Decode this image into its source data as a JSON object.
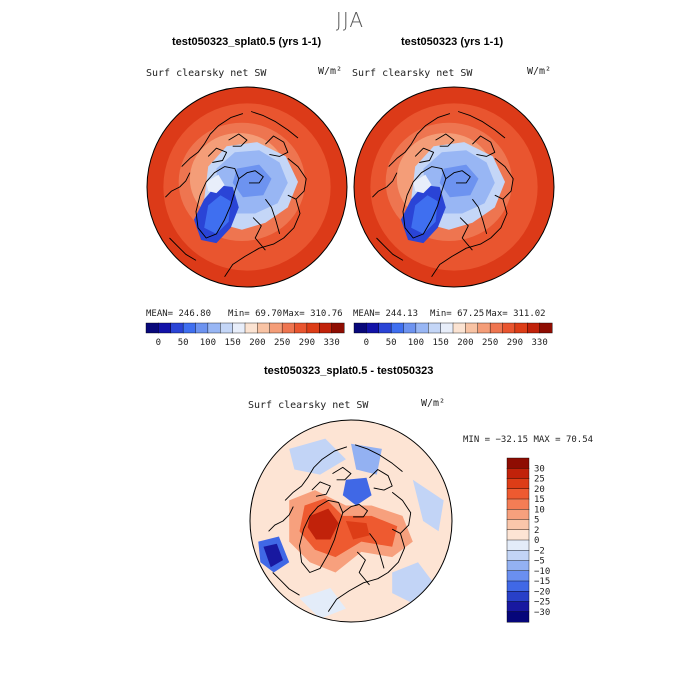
{
  "season": "JJA",
  "panels": [
    {
      "title": "test050323_splat0.5 (yrs 1-1)",
      "variable": "Surf clearsky net SW",
      "units": "W/m²",
      "stats": {
        "mean": "MEAN= 246.80",
        "min": "Min= 69.70",
        "max": "Max= 310.76"
      }
    },
    {
      "title": "test050323 (yrs 1-1)",
      "variable": "Surf clearsky net SW",
      "units": "W/m²",
      "stats": {
        "mean": "MEAN= 244.13",
        "min": "Min= 67.25",
        "max": "Max= 311.02"
      }
    },
    {
      "title": "test050323_splat0.5 - test050323",
      "variable": "Surf clearsky net SW",
      "units": "W/m²",
      "stats": {
        "minmax": "MIN = −32.15 MAX = 70.54"
      }
    }
  ],
  "chart_data": [
    {
      "type": "heatmap",
      "projection": "north polar stereographic",
      "title": "test050323_splat0.5 (yrs 1-1)",
      "variable": "Surf clearsky net SW",
      "units": "W/m²",
      "mean": 246.8,
      "min": 69.7,
      "max": 310.76,
      "colorbar": {
        "levels": [
          "0",
          "50",
          "100",
          "150",
          "200",
          "250",
          "290",
          "330"
        ],
        "colors": [
          "#08087a",
          "#1212a8",
          "#2a44d6",
          "#3f6ff0",
          "#6d93f0",
          "#98b6f4",
          "#c4d6f7",
          "#e8eefa",
          "#fbe3d2",
          "#f8c3a4",
          "#f49d78",
          "#ee7550",
          "#e9552f",
          "#dd3d17",
          "#c1220a",
          "#8e0d02"
        ],
        "orientation": "horizontal"
      }
    },
    {
      "type": "heatmap",
      "projection": "north polar stereographic",
      "title": "test050323 (yrs 1-1)",
      "variable": "Surf clearsky net SW",
      "units": "W/m²",
      "mean": 244.13,
      "min": 67.25,
      "max": 311.02,
      "colorbar": {
        "levels": [
          "0",
          "50",
          "100",
          "150",
          "200",
          "250",
          "290",
          "330"
        ],
        "colors": [
          "#08087a",
          "#1212a8",
          "#2a44d6",
          "#3f6ff0",
          "#6d93f0",
          "#98b6f4",
          "#c4d6f7",
          "#e8eefa",
          "#fbe3d2",
          "#f8c3a4",
          "#f49d78",
          "#ee7550",
          "#e9552f",
          "#dd3d17",
          "#c1220a",
          "#8e0d02"
        ],
        "orientation": "horizontal"
      }
    },
    {
      "type": "heatmap",
      "projection": "north polar stereographic",
      "title": "test050323_splat0.5 - test050323",
      "variable": "Surf clearsky net SW",
      "units": "W/m²",
      "min": -32.15,
      "max": 70.54,
      "colorbar": {
        "levels": [
          "30",
          "25",
          "20",
          "15",
          "10",
          "5",
          "2",
          "0",
          "−2",
          "−5",
          "−10",
          "−15",
          "−20",
          "−25",
          "−30"
        ],
        "colors": [
          "#8e0d02",
          "#c1220a",
          "#dd3d17",
          "#ee5a30",
          "#f47d55",
          "#f7a07d",
          "#fac6aa",
          "#fde4d4",
          "#e3ecf9",
          "#c2d4f6",
          "#93b1f2",
          "#6a8ff0",
          "#4068e6",
          "#2840c8",
          "#1818a0",
          "#06067a"
        ],
        "orientation": "vertical"
      }
    }
  ]
}
